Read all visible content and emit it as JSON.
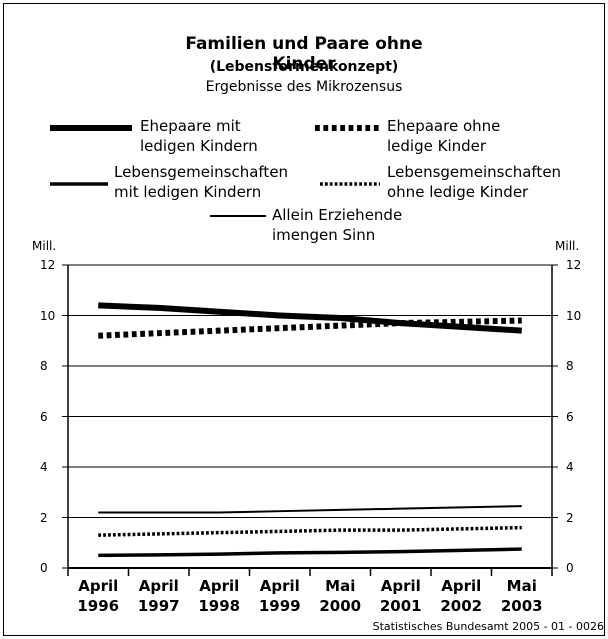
{
  "chart_data": {
    "type": "line",
    "title": "Familien und Paare ohne Kinder",
    "subtitle": "(Lebensformenkonzept)",
    "subtitle2": "Ergebnisse des Mikrozensus",
    "y_label": "Mill.",
    "y2_label": "Mill.",
    "source": "Statistisches Bundesamt 2005 - 01 - 0026",
    "categories": [
      "April\n1996",
      "April\n1997",
      "April\n1998",
      "April\n1999",
      "Mai\n2000",
      "April\n2001",
      "April\n2002",
      "Mai\n2003"
    ],
    "ylim": [
      0,
      12
    ],
    "yticks": [
      0,
      2,
      4,
      6,
      8,
      10,
      12
    ],
    "y2lim": [
      0,
      12
    ],
    "y2ticks": [
      0,
      2,
      4,
      6,
      8,
      10,
      12
    ],
    "grid": true,
    "series": [
      {
        "name": "Ehepaare mit\nledigen Kindern",
        "color": "#000000",
        "line_width": 6,
        "dashed": false,
        "values": [
          10.4,
          10.3,
          10.15,
          10.0,
          9.9,
          9.7,
          9.55,
          9.4
        ]
      },
      {
        "name": "Ehepaare ohne\nledige Kinder",
        "color": "#000000",
        "line_width": 6,
        "dashed": true,
        "values": [
          9.2,
          9.3,
          9.4,
          9.5,
          9.6,
          9.7,
          9.75,
          9.8
        ]
      },
      {
        "name": "Lebensgemeinschaften\nmit ledigen Kindern",
        "color": "#000000",
        "line_width": 3.5,
        "dashed": false,
        "values": [
          0.5,
          0.52,
          0.55,
          0.6,
          0.62,
          0.65,
          0.7,
          0.75
        ]
      },
      {
        "name": "Lebensgemeinschaften\nohne ledige Kinder",
        "color": "#000000",
        "line_width": 3.5,
        "dashed": true,
        "values": [
          1.3,
          1.35,
          1.4,
          1.45,
          1.5,
          1.5,
          1.55,
          1.6
        ]
      },
      {
        "name": "Allein Erziehende\nimengen Sinn",
        "color": "#000000",
        "line_width": 2,
        "dashed": false,
        "values": [
          2.2,
          2.2,
          2.2,
          2.25,
          2.3,
          2.35,
          2.4,
          2.45
        ]
      }
    ]
  }
}
